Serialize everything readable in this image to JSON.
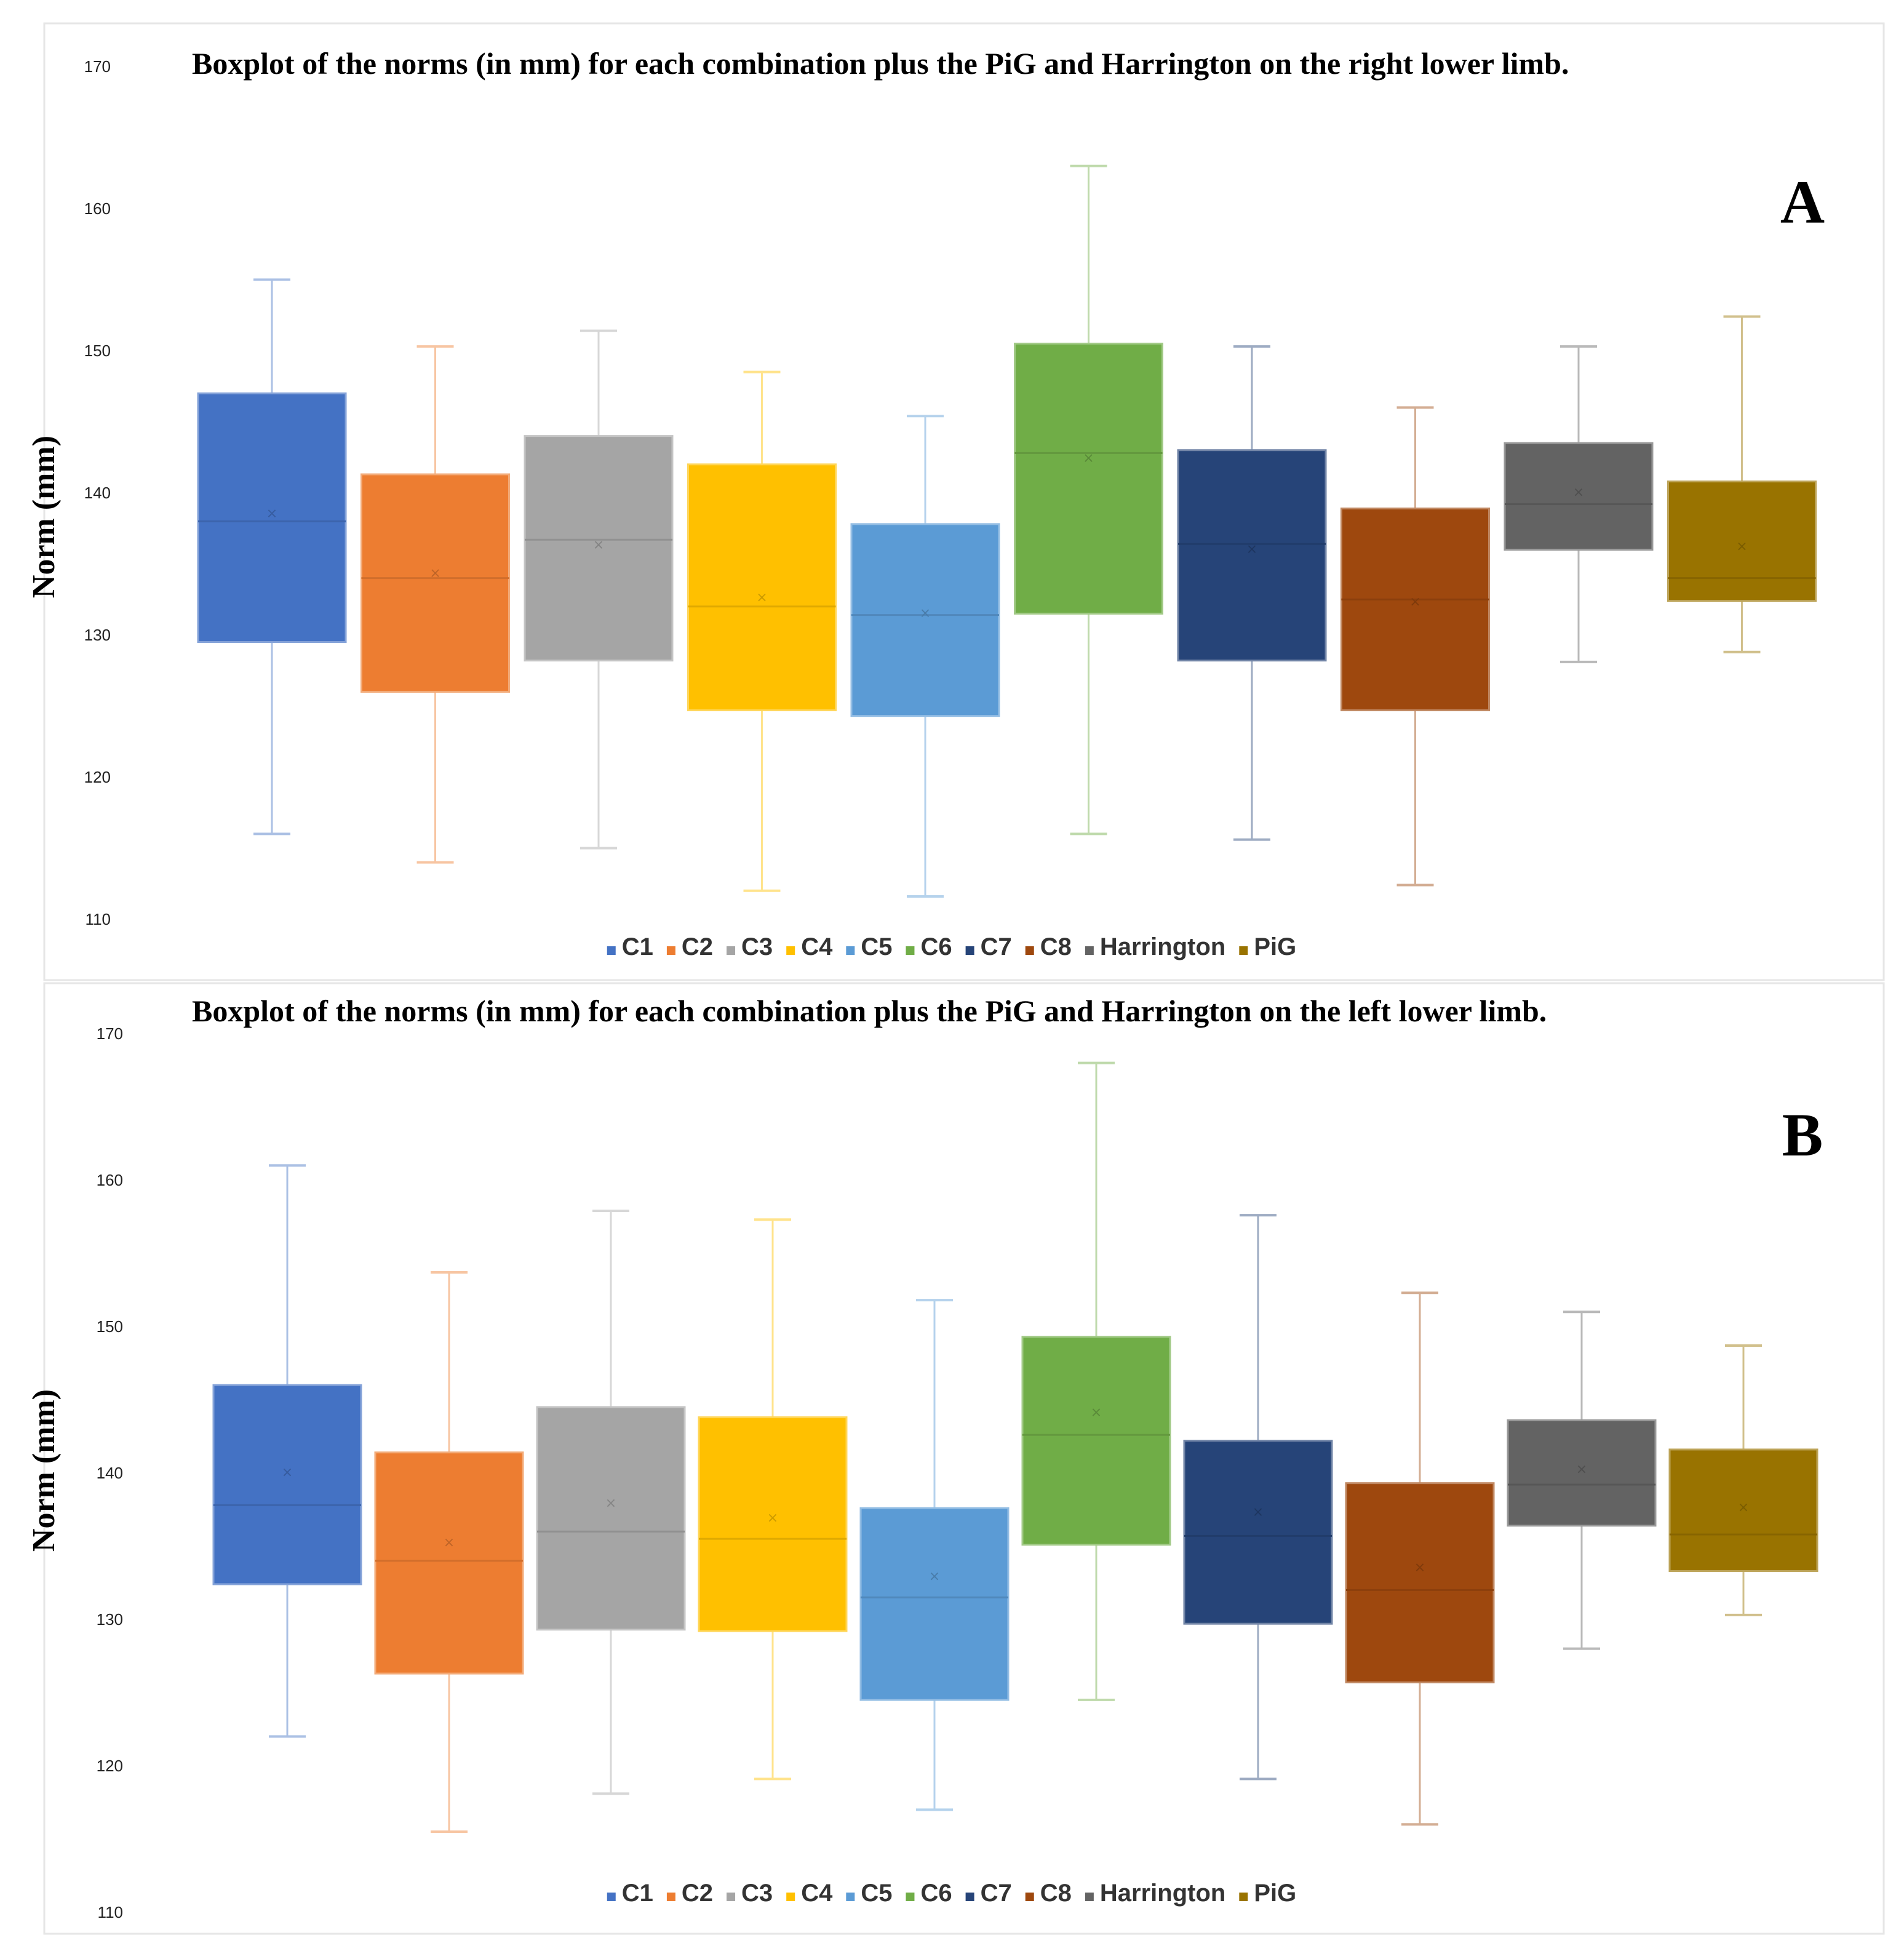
{
  "chart_data": [
    {
      "type": "boxplot",
      "panel_label": "A",
      "title": "Boxplot  of the norms  (in mm)  for each  combination  plus the PiG and Harrington  on the right lower  limb.",
      "ylabel": "Norm  (mm)",
      "ylim": [
        110,
        170
      ],
      "yticks": [
        "110",
        "120",
        "130",
        "140",
        "150",
        "160",
        "170"
      ],
      "legend": [
        "C1",
        "C2",
        "C3",
        "C4",
        "C5",
        "C6",
        "C7",
        "C8",
        "Harrington",
        "PiG"
      ],
      "series": [
        {
          "name": "C1",
          "color": "#4472C4",
          "min": 116,
          "q1": 129.5,
          "median": 138,
          "q3": 147,
          "max": 155,
          "mean": 138.5
        },
        {
          "name": "C2",
          "color": "#ED7D31",
          "min": 114,
          "q1": 126,
          "median": 134,
          "q3": 141.3,
          "max": 150.3,
          "mean": 134.3
        },
        {
          "name": "C3",
          "color": "#A5A5A5",
          "min": 115,
          "q1": 128.2,
          "median": 136.7,
          "q3": 144,
          "max": 151.4,
          "mean": 136.3
        },
        {
          "name": "C4",
          "color": "#FFC000",
          "min": 112,
          "q1": 124.7,
          "median": 132,
          "q3": 142,
          "max": 148.5,
          "mean": 132.6
        },
        {
          "name": "C5",
          "color": "#5B9BD5",
          "min": 111.6,
          "q1": 124.3,
          "median": 131.4,
          "q3": 137.8,
          "max": 145.4,
          "mean": 131.5
        },
        {
          "name": "C6",
          "color": "#70AD47",
          "min": 116,
          "q1": 131.5,
          "median": 142.8,
          "q3": 150.5,
          "max": 163,
          "mean": 142.4
        },
        {
          "name": "C7",
          "color": "#264478",
          "min": 115.6,
          "q1": 128.2,
          "median": 136.4,
          "q3": 143,
          "max": 150.3,
          "mean": 136
        },
        {
          "name": "C8",
          "color": "#9E480E",
          "min": 112.4,
          "q1": 124.7,
          "median": 132.5,
          "q3": 138.9,
          "max": 146,
          "mean": 132.3
        },
        {
          "name": "Harrington",
          "color": "#636363",
          "min": 128.1,
          "q1": 136,
          "median": 139.2,
          "q3": 143.5,
          "max": 150.3,
          "mean": 140
        },
        {
          "name": "PiG",
          "color": "#997300",
          "min": 128.8,
          "q1": 132.4,
          "median": 134,
          "q3": 140.8,
          "max": 152.4,
          "mean": 136.2
        }
      ]
    },
    {
      "type": "boxplot",
      "panel_label": "B",
      "title": "Boxplot  of the norms  (in mm)  for each  combination  plus the PiG and Harrington  on the left lower  limb.",
      "ylabel": "Norm  (mm)",
      "ylim": [
        110,
        170
      ],
      "yticks": [
        "110",
        "120",
        "130",
        "140",
        "150",
        "160",
        "170"
      ],
      "legend": [
        "C1",
        "C2",
        "C3",
        "C4",
        "C5",
        "C6",
        "C7",
        "C8",
        "Harrington",
        "PiG"
      ],
      "series": [
        {
          "name": "C1",
          "color": "#4472C4",
          "min": 122,
          "q1": 132.4,
          "median": 137.8,
          "q3": 146,
          "max": 161,
          "mean": 140
        },
        {
          "name": "C2",
          "color": "#ED7D31",
          "min": 115.5,
          "q1": 126.3,
          "median": 134,
          "q3": 141.4,
          "max": 153.7,
          "mean": 135.2
        },
        {
          "name": "C3",
          "color": "#A5A5A5",
          "min": 118.1,
          "q1": 129.3,
          "median": 136,
          "q3": 144.5,
          "max": 157.9,
          "mean": 137.9
        },
        {
          "name": "C4",
          "color": "#FFC000",
          "min": 119.1,
          "q1": 129.2,
          "median": 135.5,
          "q3": 143.8,
          "max": 157.3,
          "mean": 136.9
        },
        {
          "name": "C5",
          "color": "#5B9BD5",
          "min": 117,
          "q1": 124.5,
          "median": 131.5,
          "q3": 137.6,
          "max": 151.8,
          "mean": 132.9
        },
        {
          "name": "C6",
          "color": "#70AD47",
          "min": 124.5,
          "q1": 135.1,
          "median": 142.6,
          "q3": 149.3,
          "max": 168,
          "mean": 144.1
        },
        {
          "name": "C7",
          "color": "#264478",
          "min": 119.1,
          "q1": 129.7,
          "median": 135.7,
          "q3": 142.2,
          "max": 157.6,
          "mean": 137.3
        },
        {
          "name": "C8",
          "color": "#9E480E",
          "min": 116,
          "q1": 125.7,
          "median": 132,
          "q3": 139.3,
          "max": 152.3,
          "mean": 133.5
        },
        {
          "name": "Harrington",
          "color": "#636363",
          "min": 128,
          "q1": 136.4,
          "median": 139.2,
          "q3": 143.6,
          "max": 151,
          "mean": 140.2
        },
        {
          "name": "PiG",
          "color": "#997300",
          "min": 130.3,
          "q1": 133.3,
          "median": 135.8,
          "q3": 141.6,
          "max": 148.7,
          "mean": 137.6
        }
      ]
    }
  ]
}
